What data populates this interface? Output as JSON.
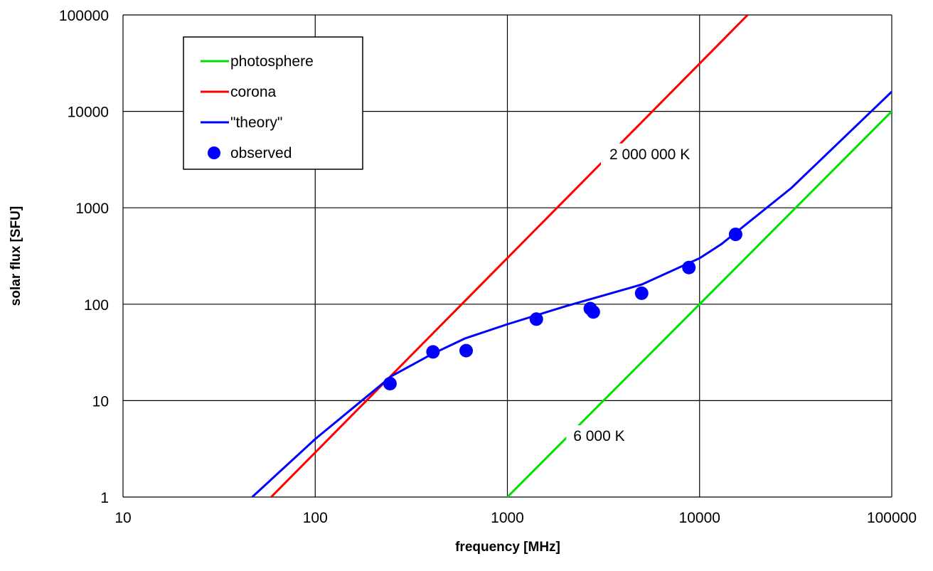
{
  "chart_data": {
    "type": "line",
    "title": "",
    "xlabel": "frequency  [MHz]",
    "ylabel": "solar flux [SFU]",
    "xscale": "log",
    "yscale": "log",
    "xlim": [
      10,
      100000
    ],
    "ylim": [
      1,
      100000
    ],
    "xticks": [
      10,
      100,
      1000,
      10000,
      100000
    ],
    "yticks": [
      1,
      10,
      100,
      1000,
      10000,
      100000
    ],
    "xtick_labels": [
      "10",
      "100",
      "1000",
      "10000",
      "100000"
    ],
    "ytick_labels": [
      "1",
      "10",
      "100",
      "1000",
      "10000",
      "100000"
    ],
    "grid": true,
    "legend_position": "top-left",
    "series": [
      {
        "name": "photosphere",
        "kind": "line",
        "color": "#00e000",
        "x": [
          1000,
          100000
        ],
        "y": [
          1,
          10000
        ]
      },
      {
        "name": "corona",
        "kind": "line",
        "color": "#ff0000",
        "x": [
          59,
          17800
        ],
        "y": [
          1,
          100000
        ]
      },
      {
        "name": "\"theory\"",
        "kind": "line",
        "color": "#0000ff",
        "x": [
          47,
          100,
          250,
          400,
          600,
          1000,
          2000,
          5000,
          10000,
          13000,
          30000,
          100000
        ],
        "y": [
          1,
          4,
          18,
          30,
          44,
          62,
          95,
          160,
          300,
          420,
          1600,
          16000
        ]
      },
      {
        "name": "observed",
        "kind": "scatter",
        "color": "#0000ff",
        "x": [
          245,
          410,
          610,
          1415,
          2700,
          2800,
          4995,
          8800,
          15400
        ],
        "y": [
          15,
          32,
          33,
          70,
          90,
          83,
          130,
          240,
          530
        ]
      }
    ],
    "annotations": [
      {
        "text": "2 000 000 K",
        "x": 5500,
        "y": 3600
      },
      {
        "text": "6 000 K",
        "x": 3000,
        "y": 4.3
      }
    ]
  }
}
